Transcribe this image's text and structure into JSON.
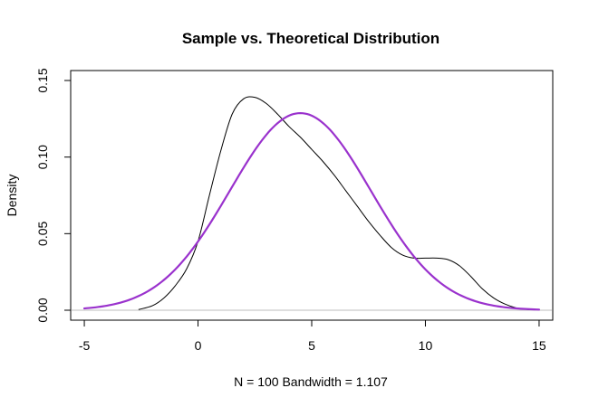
{
  "chart_data": {
    "type": "line",
    "title": "Sample vs. Theoretical Distribution",
    "xlabel": "N = 100   Bandwidth = 1.107",
    "ylabel": "Density",
    "xlim": [
      -5.6,
      15.6
    ],
    "ylim": [
      -0.0065,
      0.1565
    ],
    "x_ticks": [
      -5,
      0,
      5,
      10,
      15
    ],
    "x_tick_labels": [
      "-5",
      "0",
      "5",
      "10",
      "15"
    ],
    "y_ticks": [
      0.0,
      0.05,
      0.1,
      0.15
    ],
    "y_tick_labels": [
      "0.00",
      "0.05",
      "0.10",
      "0.15"
    ],
    "baseline": {
      "y": 0,
      "color": "#bebebe"
    },
    "grid": false,
    "series": [
      {
        "color": "#000000",
        "line_width": 1,
        "x": [
          -2.6,
          -2.0,
          -1.5,
          -1.0,
          -0.5,
          0.0,
          0.5,
          1.0,
          1.5,
          2.0,
          2.5,
          3.0,
          3.5,
          4.0,
          4.5,
          5.0,
          5.5,
          6.0,
          6.5,
          7.0,
          7.5,
          8.0,
          8.5,
          9.0,
          9.5,
          10.0,
          10.5,
          11.0,
          11.5,
          12.0,
          12.5,
          13.0,
          13.5,
          14.0,
          14.6
        ],
        "y": [
          0.0005,
          0.003,
          0.008,
          0.016,
          0.027,
          0.045,
          0.075,
          0.104,
          0.128,
          0.138,
          0.139,
          0.135,
          0.128,
          0.12,
          0.113,
          0.105,
          0.097,
          0.088,
          0.078,
          0.068,
          0.058,
          0.049,
          0.041,
          0.036,
          0.034,
          0.034,
          0.034,
          0.033,
          0.029,
          0.022,
          0.014,
          0.008,
          0.004,
          0.0015,
          0.0003
        ]
      },
      {
        "color": "#9a32cd",
        "line_width": 2.2,
        "distribution": {
          "kind": "normal",
          "mean": 4.5,
          "sd": 3.1,
          "from": -5,
          "to": 15,
          "points": 101
        }
      }
    ]
  }
}
